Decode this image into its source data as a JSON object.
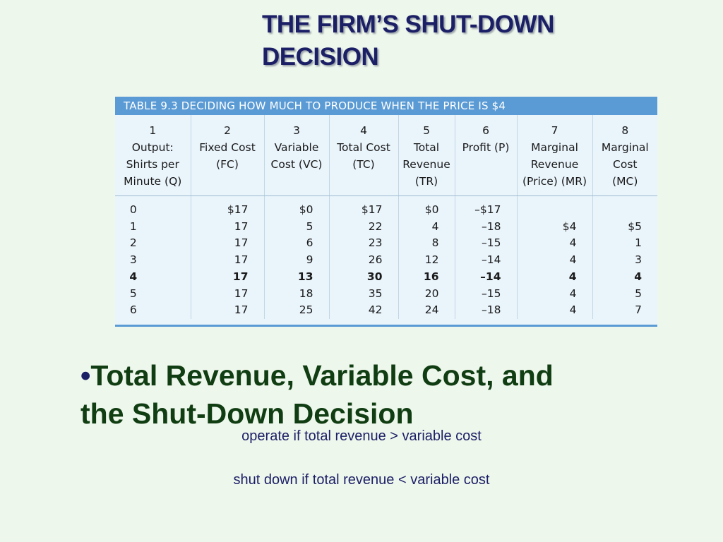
{
  "slide": {
    "title_line1": "THE FIRM’S SHUT-DOWN",
    "title_line2": "DECISION",
    "bullet_heading_line1": "Total Revenue, Variable Cost, and",
    "bullet_heading_line2": "the Shut-Down Decision",
    "rule_operate": "operate if total revenue > variable cost",
    "rule_shutdown": "shut down if total revenue < variable cost"
  },
  "table": {
    "caption": "TABLE 9.3  DECIDING HOW MUCH TO PRODUCE WHEN THE PRICE IS $4",
    "columns": [
      {
        "num": "1",
        "lines": [
          "Output:",
          "Shirts per",
          "Minute (Q)"
        ]
      },
      {
        "num": "2",
        "lines": [
          "Fixed Cost",
          "(FC)"
        ]
      },
      {
        "num": "3",
        "lines": [
          "Variable",
          "Cost (VC)"
        ]
      },
      {
        "num": "4",
        "lines": [
          "Total Cost",
          "(TC)"
        ]
      },
      {
        "num": "5",
        "lines": [
          "Total",
          "Revenue",
          "(TR)"
        ]
      },
      {
        "num": "6",
        "lines": [
          "Profit (P)"
        ]
      },
      {
        "num": "7",
        "lines": [
          "Marginal",
          "Revenue",
          "(Price) (MR)"
        ]
      },
      {
        "num": "8",
        "lines": [
          "Marginal",
          "Cost",
          "(MC)"
        ]
      }
    ],
    "rows": [
      [
        "0",
        "$17",
        "$0",
        "$17",
        "$0",
        "–$17",
        "",
        ""
      ],
      [
        "1",
        "17",
        "5",
        "22",
        "4",
        "–18",
        "$4",
        "$5"
      ],
      [
        "2",
        "17",
        "6",
        "23",
        "8",
        "–15",
        "4",
        "1"
      ],
      [
        "3",
        "17",
        "9",
        "26",
        "12",
        "–14",
        "4",
        "3"
      ],
      [
        "4",
        "17",
        "13",
        "30",
        "16",
        "–14",
        "4",
        "4"
      ],
      [
        "5",
        "17",
        "18",
        "35",
        "20",
        "–15",
        "4",
        "5"
      ],
      [
        "6",
        "17",
        "25",
        "42",
        "24",
        "–18",
        "4",
        "7"
      ]
    ],
    "bold_row_index": 4
  },
  "colors": {
    "background": "#eef7ec",
    "title": "#1b1f66",
    "heading": "#103d12",
    "table_header": "#5b9bd5",
    "table_body": "#e9f4fb"
  }
}
